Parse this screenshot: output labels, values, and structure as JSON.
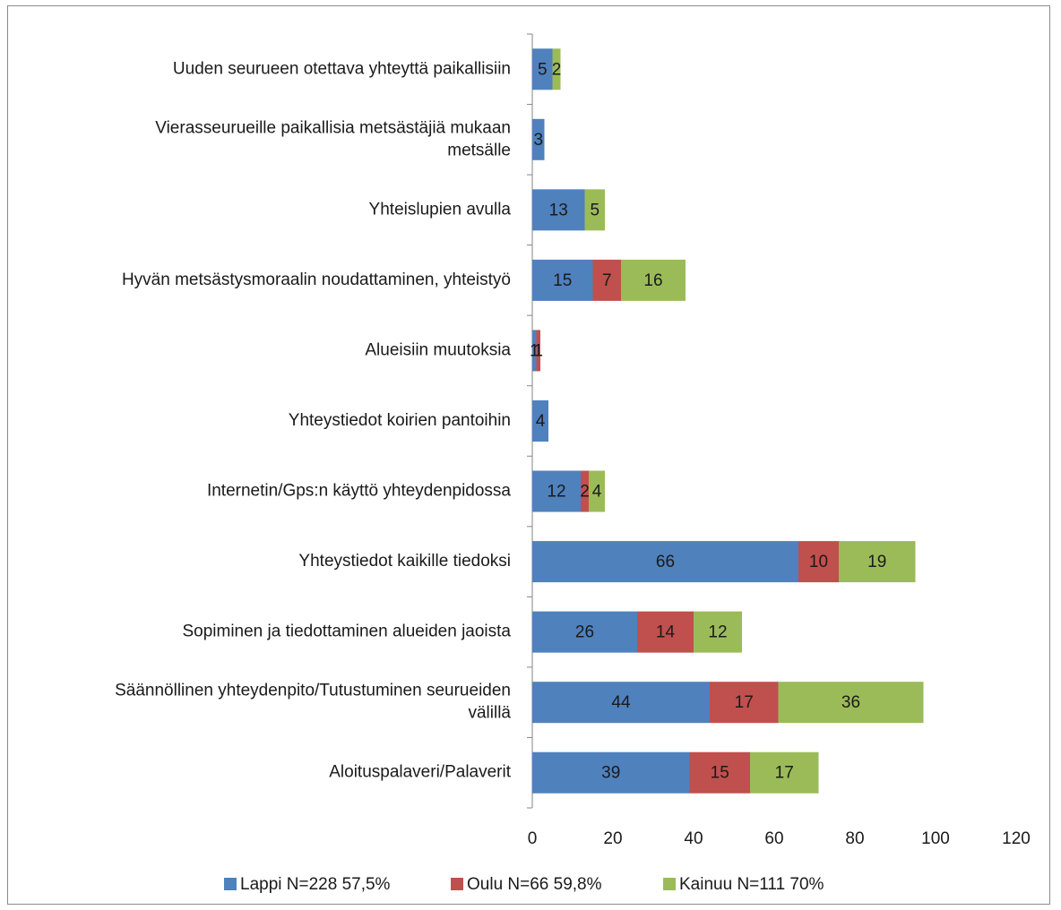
{
  "chart_data": {
    "type": "bar",
    "orientation": "horizontal",
    "stacked": true,
    "categories": [
      "Aloituspalaveri/Palaverit",
      [
        "Säännöllinen yhteydenpito/Tutustuminen seurueiden",
        "välillä"
      ],
      "Sopiminen ja tiedottaminen alueiden jaoista",
      "Yhteystiedot kaikille tiedoksi",
      "Internetin/Gps:n käyttö yhteydenpidossa",
      "Yhteystiedot koirien pantoihin",
      "Alueisiin muutoksia",
      "Hyvän metsästysmoraalin noudattaminen, yhteistyö",
      "Yhteislupien avulla",
      [
        "Vierasseurueille paikallisia metsästäjiä mukaan",
        "metsälle"
      ],
      "Uuden seurueen otettava yhteyttä paikallisiin"
    ],
    "series": [
      {
        "name": "Lappi N=228 57,5%",
        "color": "#4f81bd",
        "values": [
          39,
          44,
          26,
          66,
          12,
          4,
          1,
          15,
          13,
          3,
          5
        ]
      },
      {
        "name": "Oulu N=66 59,8%",
        "color": "#c0504d",
        "values": [
          15,
          17,
          14,
          10,
          2,
          0,
          1,
          7,
          0,
          0,
          0
        ]
      },
      {
        "name": "Kainuu N=111 70%",
        "color": "#9bbb59",
        "values": [
          17,
          36,
          12,
          19,
          4,
          0,
          0,
          16,
          5,
          0,
          2
        ]
      }
    ],
    "xlim": [
      0,
      120
    ],
    "xticks": [
      0,
      20,
      40,
      60,
      80,
      100,
      120
    ],
    "grid": false,
    "legend": "bottom",
    "title": "",
    "xlabel": "",
    "ylabel": ""
  }
}
